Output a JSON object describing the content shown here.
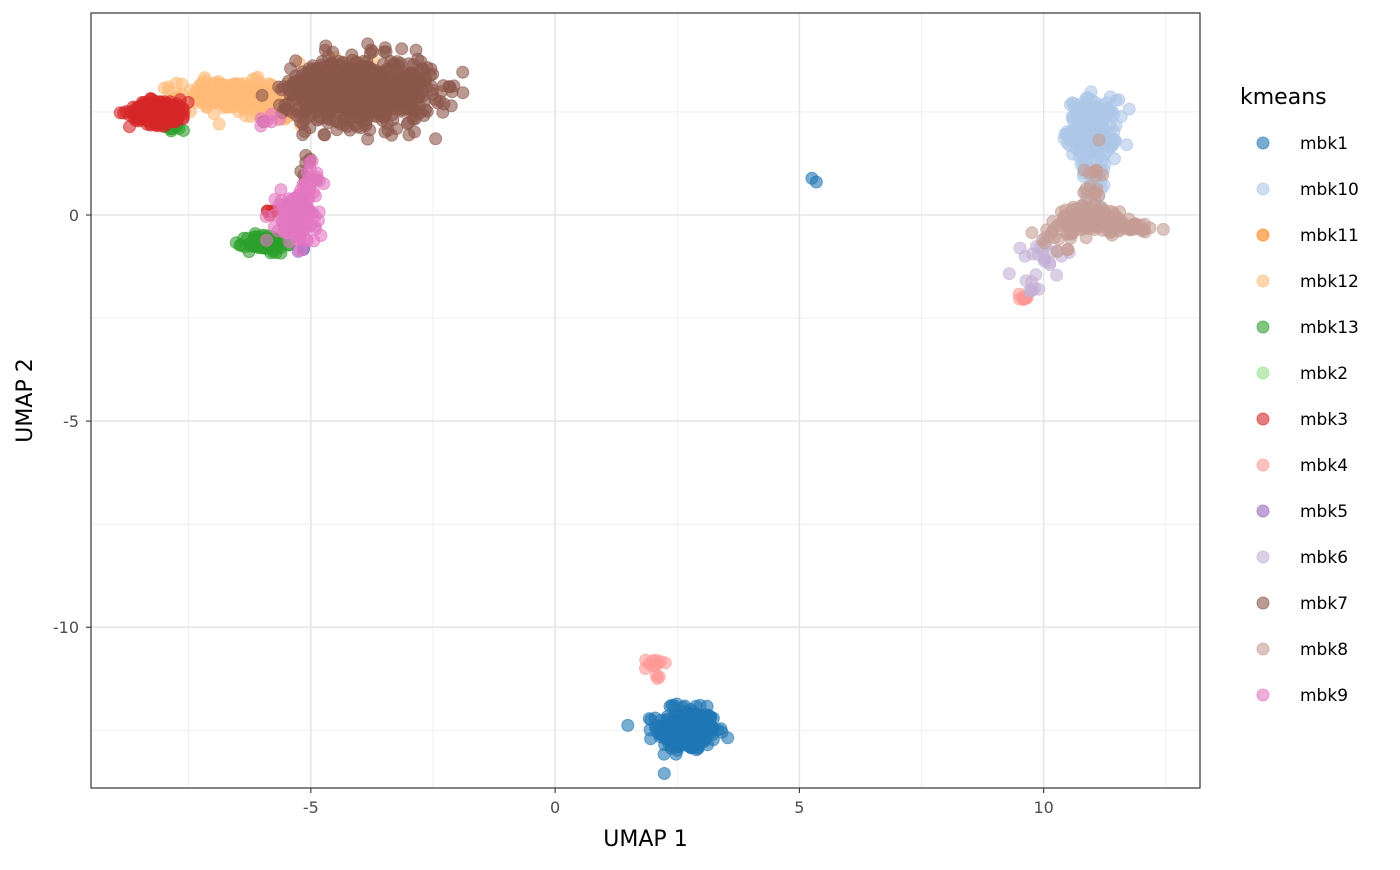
{
  "chart_data": {
    "type": "scatter",
    "title": "",
    "xlabel": "UMAP 1",
    "ylabel": "UMAP 2",
    "xlim": [
      -9.5,
      13.2
    ],
    "ylim": [
      -13.9,
      4.9
    ],
    "x_ticks": [
      -5,
      0,
      5,
      10
    ],
    "x_tick_labels": [
      "-5",
      "0",
      "5",
      "10"
    ],
    "y_ticks": [
      0,
      -5,
      -10
    ],
    "y_tick_labels": [
      "0",
      "-5",
      "-10"
    ],
    "grid": true,
    "legend": {
      "title": "kmeans",
      "position": "right"
    },
    "series": [
      {
        "name": "mbk1",
        "color": "#1f77b4",
        "clusters": [
          [
            2.7,
            -12.5,
            0.3,
            0.25,
            320
          ],
          [
            2.5,
            -11.9,
            0.15,
            0.1,
            6
          ],
          [
            5.3,
            0.8,
            0.05,
            0.05,
            2
          ],
          [
            10.8,
            1.8,
            0.08,
            0.08,
            4
          ]
        ]
      },
      {
        "name": "mbk10",
        "color": "#aec7e8",
        "clusters": [
          [
            11.0,
            2.1,
            0.25,
            0.35,
            220
          ],
          [
            11.0,
            1.0,
            0.12,
            0.45,
            40
          ]
        ]
      },
      {
        "name": "mbk11",
        "color": "#ff7f0e",
        "clusters": []
      },
      {
        "name": "mbk12",
        "color": "#ffbb78",
        "clusters": [
          [
            -6.6,
            2.9,
            0.55,
            0.18,
            260
          ],
          [
            -5.6,
            2.6,
            0.3,
            0.2,
            60
          ],
          [
            -4.1,
            3.3,
            0.5,
            0.3,
            40
          ]
        ]
      },
      {
        "name": "mbk13",
        "color": "#2ca02c",
        "clusters": [
          [
            -5.9,
            -0.7,
            0.2,
            0.12,
            70
          ],
          [
            -7.8,
            2.1,
            0.15,
            0.1,
            10
          ]
        ]
      },
      {
        "name": "mbk2",
        "color": "#98df8a",
        "clusters": []
      },
      {
        "name": "mbk3",
        "color": "#d62728",
        "clusters": [
          [
            -8.1,
            2.5,
            0.3,
            0.15,
            200
          ],
          [
            -5.8,
            0.1,
            0.05,
            0.05,
            5
          ]
        ]
      },
      {
        "name": "mbk4",
        "color": "#ff9896",
        "clusters": [
          [
            2.0,
            -10.9,
            0.08,
            0.08,
            10
          ],
          [
            2.1,
            -11.2,
            0.05,
            0.05,
            3
          ],
          [
            9.6,
            -2.0,
            0.05,
            0.05,
            8
          ]
        ]
      },
      {
        "name": "mbk5",
        "color": "#9467bd",
        "clusters": [
          [
            -5.2,
            -0.8,
            0.05,
            0.05,
            3
          ]
        ]
      },
      {
        "name": "mbk6",
        "color": "#c5b0d5",
        "clusters": [
          [
            10.1,
            -1.0,
            0.25,
            0.2,
            20
          ],
          [
            9.8,
            -1.6,
            0.1,
            0.2,
            8
          ]
        ]
      },
      {
        "name": "mbk7",
        "color": "#8c564b",
        "clusters": [
          [
            -3.9,
            3.0,
            0.7,
            0.4,
            700
          ],
          [
            -4.9,
            3.0,
            0.4,
            0.3,
            120
          ],
          [
            -5.1,
            1.0,
            0.15,
            0.4,
            10
          ]
        ]
      },
      {
        "name": "mbk8",
        "color": "#c49c94",
        "clusters": [
          [
            11.0,
            -0.1,
            0.35,
            0.15,
            120
          ],
          [
            11.8,
            -0.3,
            0.25,
            0.06,
            40
          ],
          [
            11.0,
            0.8,
            0.1,
            0.35,
            20
          ],
          [
            10.4,
            -0.5,
            0.2,
            0.15,
            20
          ]
        ]
      },
      {
        "name": "mbk9",
        "color": "#e377c2",
        "clusters": [
          [
            -5.3,
            -0.1,
            0.2,
            0.3,
            150
          ],
          [
            -5.1,
            0.7,
            0.12,
            0.35,
            25
          ],
          [
            -5.9,
            2.3,
            0.15,
            0.1,
            6
          ]
        ]
      }
    ]
  }
}
